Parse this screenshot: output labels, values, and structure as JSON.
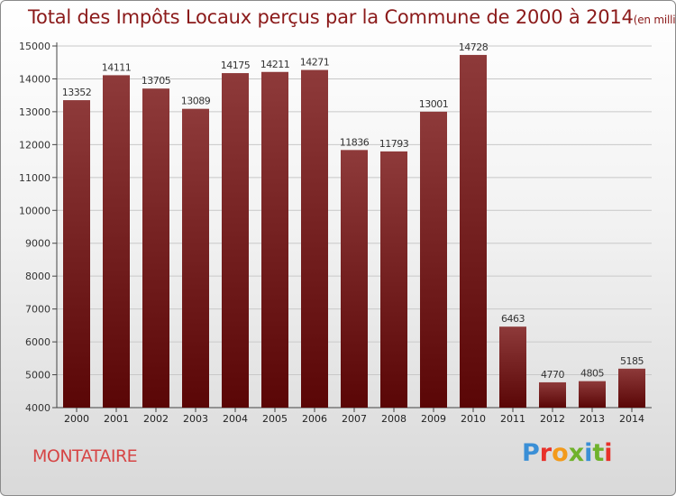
{
  "title": "Total des Impôts Locaux perçus par la Commune de 2000 à 2014",
  "title_unit": "(en milliers d'€)",
  "commune": "MONTATAIRE",
  "logo_text": "Proxiti",
  "chart_data": {
    "type": "bar",
    "categories": [
      "2000",
      "2001",
      "2002",
      "2003",
      "2004",
      "2005",
      "2006",
      "2007",
      "2008",
      "2009",
      "2010",
      "2011",
      "2012",
      "2013",
      "2014"
    ],
    "values": [
      13352,
      14111,
      13705,
      13089,
      14175,
      14211,
      14271,
      11836,
      11793,
      13001,
      14728,
      6463,
      4770,
      4805,
      5185
    ],
    "title": "Total des Impôts Locaux perçus par la Commune de 2000 à 2014",
    "ylabel": "en milliers d'€",
    "ylim": [
      4000,
      15000
    ],
    "yticks": [
      4000,
      5000,
      6000,
      7000,
      8000,
      9000,
      10000,
      11000,
      12000,
      13000,
      14000,
      15000
    ],
    "grid": true,
    "bar_color": "#7a1e1e"
  }
}
